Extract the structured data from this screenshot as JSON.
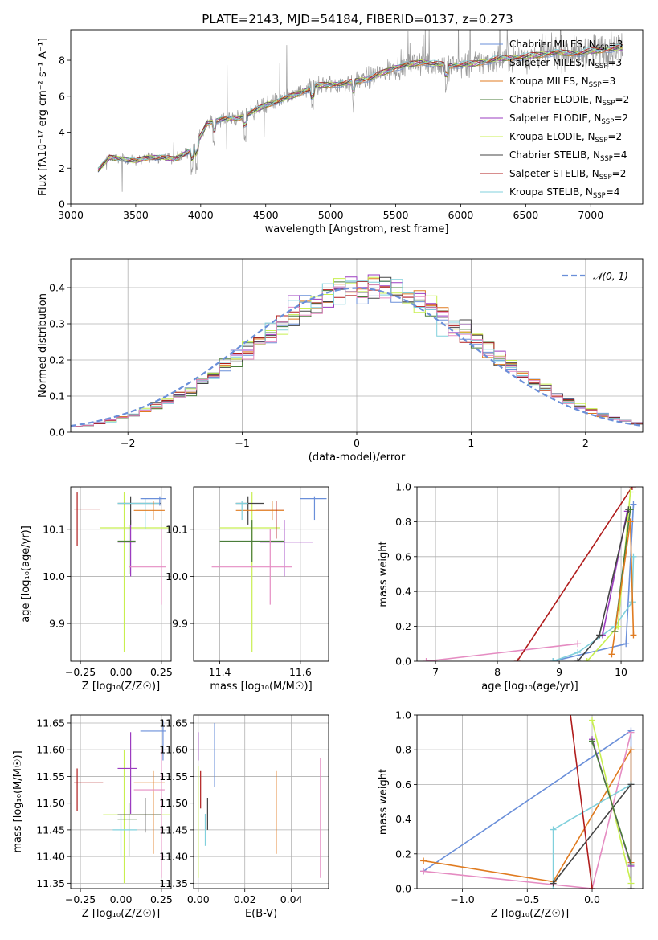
{
  "figure": {
    "title": "PLATE=2143, MJD=54184, FIBERID=0137, z=0.273"
  },
  "model_colors": {
    "chabrier_miles": "#6a8fd9",
    "salpeter_miles": "#9a9a9a",
    "kroupa_miles": "#e07b20",
    "chabrier_elodie": "#4a7d3a",
    "salpeter_elodie": "#9b3cc0",
    "kroupa_elodie": "#c8ef50",
    "chabrier_stelib": "#444444",
    "salpeter_stelib": "#b01c1c",
    "kroupa_stelib": "#80d0dc",
    "pink": "#e58cc2"
  },
  "chart_data": [
    {
      "type": "line",
      "id": "spectrum",
      "xlabel": "wavelength [Angstrom, rest frame]",
      "ylabel": "Flux [fλ10⁻¹⁷ erg cm⁻² s⁻¹ A⁻¹]",
      "xlim": [
        3000,
        7400
      ],
      "ylim": [
        0,
        9.7
      ],
      "xticks": [
        "3000",
        "3500",
        "4000",
        "4500",
        "5000",
        "5500",
        "6000",
        "6500",
        "7000"
      ],
      "yticks": [
        "0",
        "2",
        "4",
        "6",
        "8"
      ],
      "grid": false,
      "legend_position": "top-right",
      "continuum_anchors": {
        "x": [
          3210,
          3300,
          3400,
          3500,
          3600,
          3700,
          3800,
          3950,
          4050,
          4150,
          4300,
          4500,
          4700,
          4900,
          5100,
          5300,
          5500,
          5700,
          5900,
          6100,
          6300,
          6500,
          6700,
          6900,
          7100,
          7250
        ],
        "y": [
          1.9,
          2.6,
          2.5,
          2.4,
          2.6,
          2.6,
          2.5,
          3.1,
          4.5,
          4.7,
          4.8,
          5.5,
          6.0,
          6.6,
          6.7,
          7.0,
          7.6,
          7.9,
          7.7,
          7.8,
          8.1,
          8.2,
          8.4,
          8.4,
          8.6,
          8.7
        ]
      },
      "series": [
        {
          "name": "Chabrier MILES, N_SSP=3",
          "color_key": "chabrier_miles"
        },
        {
          "name": "Salpeter MILES, N_SSP=3",
          "color_key": "salpeter_miles"
        },
        {
          "name": "Kroupa MILES, N_SSP=3",
          "color_key": "kroupa_miles"
        },
        {
          "name": "Chabrier ELODIE, N_SSP=2",
          "color_key": "chabrier_elodie"
        },
        {
          "name": "Salpeter ELODIE, N_SSP=2",
          "color_key": "salpeter_elodie"
        },
        {
          "name": "Kroupa ELODIE, N_SSP=2",
          "color_key": "kroupa_elodie"
        },
        {
          "name": "Chabrier STELIB, N_SSP=4",
          "color_key": "chabrier_stelib"
        },
        {
          "name": "Salpeter STELIB, N_SSP=2",
          "color_key": "salpeter_stelib"
        },
        {
          "name": "Kroupa STELIB, N_SSP=4",
          "color_key": "kroupa_stelib"
        }
      ],
      "legend_labels": [
        {
          "pre": "Chabrier MILES, N",
          "sub": "SSP",
          "post": "=3",
          "color_key": "chabrier_miles"
        },
        {
          "pre": "Salpeter MILES, N",
          "sub": "SSP",
          "post": "=3",
          "color_key": "salpeter_miles"
        },
        {
          "pre": "Kroupa MILES, N",
          "sub": "SSP",
          "post": "=3",
          "color_key": "kroupa_miles"
        },
        {
          "pre": "Chabrier ELODIE, N",
          "sub": "SSP",
          "post": "=2",
          "color_key": "chabrier_elodie"
        },
        {
          "pre": "Salpeter ELODIE, N",
          "sub": "SSP",
          "post": "=2",
          "color_key": "salpeter_elodie"
        },
        {
          "pre": "Kroupa ELODIE, N",
          "sub": "SSP",
          "post": "=2",
          "color_key": "kroupa_elodie"
        },
        {
          "pre": "Chabrier STELIB, N",
          "sub": "SSP",
          "post": "=4",
          "color_key": "chabrier_stelib"
        },
        {
          "pre": "Salpeter STELIB, N",
          "sub": "SSP",
          "post": "=2",
          "color_key": "salpeter_stelib"
        },
        {
          "pre": "Kroupa STELIB, N",
          "sub": "SSP",
          "post": "=4",
          "color_key": "kroupa_stelib"
        }
      ]
    },
    {
      "type": "histogram",
      "id": "residuals",
      "xlabel": "(data-model)/error",
      "ylabel": "Normed distribution",
      "xlim": [
        -2.5,
        2.5
      ],
      "ylim": [
        0,
        0.48
      ],
      "xticks": [
        "−2",
        "−1",
        "0",
        "1",
        "2"
      ],
      "yticks": [
        "0.0",
        "0.1",
        "0.2",
        "0.3",
        "0.4"
      ],
      "grid": true,
      "legend_position": "top-right",
      "reference_curve": {
        "name": "𝒩(0, 1)",
        "color": "#6a8fd9",
        "style": "dashed",
        "mean": 0,
        "sigma": 1
      },
      "bin_width": 0.1
    },
    {
      "type": "errorbar",
      "id": "age_vs_Z",
      "xlabel": "Z [log₁₀(Z/Z☉)]",
      "ylabel": "age  [log₁₀(age/yr)]",
      "xlim": [
        -0.31,
        0.31
      ],
      "ylim": [
        9.82,
        10.19
      ],
      "xticks": [
        "−0.25",
        "0.00",
        "0.25"
      ],
      "yticks": [
        "9.9",
        "10.0",
        "10.1"
      ],
      "grid": true,
      "points": [
        {
          "color_key": "salpeter_stelib",
          "x": -0.27,
          "xlo": -0.29,
          "xhi": -0.13,
          "y": 10.143,
          "ylo": 10.065,
          "yhi": 10.178
        },
        {
          "color_key": "kroupa_elodie",
          "x": 0.02,
          "xlo": -0.13,
          "xhi": 0.3,
          "y": 10.103,
          "ylo": 9.84,
          "yhi": 10.178
        },
        {
          "color_key": "salpeter_elodie",
          "x": 0.06,
          "xlo": -0.02,
          "xhi": 0.09,
          "y": 10.073,
          "ylo": 10.0,
          "yhi": 10.12
        },
        {
          "color_key": "chabrier_elodie",
          "x": 0.05,
          "xlo": -0.02,
          "xhi": 0.09,
          "y": 10.075,
          "ylo": 10.005,
          "yhi": 10.11
        },
        {
          "color_key": "chabrier_stelib",
          "x": 0.06,
          "xlo": -0.02,
          "xhi": 0.25,
          "y": 10.155,
          "ylo": 10.11,
          "yhi": 10.17
        },
        {
          "color_key": "kroupa_stelib",
          "x": 0.15,
          "xlo": -0.02,
          "xhi": 0.24,
          "y": 10.155,
          "ylo": 10.1,
          "yhi": 10.165
        },
        {
          "color_key": "kroupa_miles",
          "x": 0.2,
          "xlo": 0.08,
          "xhi": 0.27,
          "y": 10.14,
          "ylo": 10.12,
          "yhi": 10.16
        },
        {
          "color_key": "chabrier_miles",
          "x": 0.24,
          "xlo": 0.12,
          "xhi": 0.28,
          "y": 10.165,
          "ylo": 10.15,
          "yhi": 10.17
        },
        {
          "color_key": "pink",
          "x": 0.25,
          "xlo": 0.05,
          "xhi": 0.28,
          "y": 10.02,
          "ylo": 9.94,
          "yhi": 10.1
        }
      ]
    },
    {
      "type": "errorbar",
      "id": "age_vs_mass",
      "xlabel": "mass [log₁₀(M/M☉)]",
      "ylabel": "",
      "xlim": [
        11.335,
        11.67
      ],
      "ylim": [
        9.82,
        10.19
      ],
      "xticks": [
        "11.4",
        "11.6"
      ],
      "yticks": [
        "9.9",
        "10.0",
        "10.1"
      ],
      "grid": true,
      "points": [
        {
          "color_key": "kroupa_elodie",
          "x": 11.48,
          "xlo": 11.4,
          "xhi": 11.55,
          "y": 10.103,
          "ylo": 9.84,
          "yhi": 10.178
        },
        {
          "color_key": "chabrier_elodie",
          "x": 11.48,
          "xlo": 11.4,
          "xhi": 11.56,
          "y": 10.075,
          "ylo": 10.03,
          "yhi": 10.12
        },
        {
          "color_key": "salpeter_elodie",
          "x": 11.56,
          "xlo": 11.5,
          "xhi": 11.63,
          "y": 10.073,
          "ylo": 10.0,
          "yhi": 10.12
        },
        {
          "color_key": "chabrier_stelib",
          "x": 11.47,
          "xlo": 11.44,
          "xhi": 11.51,
          "y": 10.155,
          "ylo": 10.11,
          "yhi": 10.17
        },
        {
          "color_key": "kroupa_miles",
          "x": 11.53,
          "xlo": 11.44,
          "xhi": 11.56,
          "y": 10.14,
          "ylo": 10.12,
          "yhi": 10.16
        },
        {
          "color_key": "salpeter_stelib",
          "x": 11.54,
          "xlo": 11.49,
          "xhi": 11.56,
          "y": 10.143,
          "ylo": 10.08,
          "yhi": 10.16
        },
        {
          "color_key": "chabrier_miles",
          "x": 11.635,
          "xlo": 11.6,
          "xhi": 11.665,
          "y": 10.165,
          "ylo": 10.12,
          "yhi": 10.17
        },
        {
          "color_key": "kroupa_stelib",
          "x": 11.455,
          "xlo": 11.44,
          "xhi": 11.47,
          "y": 10.155,
          "ylo": 10.12,
          "yhi": 10.16
        },
        {
          "color_key": "pink",
          "x": 11.525,
          "xlo": 11.38,
          "xhi": 11.58,
          "y": 10.02,
          "ylo": 9.94,
          "yhi": 10.1
        }
      ]
    },
    {
      "type": "line",
      "id": "weight_vs_age",
      "xlabel": "age  [log₁₀(age/yr)]",
      "ylabel": "mass weight",
      "xlim": [
        6.7,
        10.35
      ],
      "ylim": [
        0,
        1
      ],
      "xticks": [
        "7",
        "8",
        "9",
        "10"
      ],
      "yticks": [
        "0.0",
        "0.2",
        "0.4",
        "0.6",
        "0.8",
        "1.0"
      ],
      "grid": true,
      "series": [
        {
          "color_key": "pink",
          "x": [
            6.85,
            9.3
          ],
          "y": [
            0.0,
            0.1
          ]
        },
        {
          "color_key": "salpeter_stelib",
          "x": [
            8.32,
            10.18
          ],
          "y": [
            0.0,
            1.0
          ]
        },
        {
          "color_key": "chabrier_miles",
          "x": [
            8.9,
            10.08,
            10.2
          ],
          "y": [
            0.0,
            0.1,
            0.9
          ]
        },
        {
          "color_key": "kroupa_stelib",
          "x": [
            8.9,
            9.3,
            9.9,
            10.18,
            10.2
          ],
          "y": [
            0.0,
            0.05,
            0.2,
            0.34,
            0.6
          ]
        },
        {
          "color_key": "kroupa_elodie",
          "x": [
            9.45,
            9.95,
            10.15
          ],
          "y": [
            0.0,
            0.2,
            0.97
          ]
        },
        {
          "color_key": "salpeter_elodie",
          "x": [
            9.7,
            10.1
          ],
          "y": [
            0.15,
            0.86
          ]
        },
        {
          "color_key": "chabrier_stelib",
          "x": [
            9.3,
            9.65,
            10.12
          ],
          "y": [
            0.0,
            0.15,
            0.87
          ]
        },
        {
          "color_key": "chabrier_elodie",
          "x": [
            9.9,
            10.15
          ],
          "y": [
            0.17,
            0.87
          ]
        },
        {
          "color_key": "kroupa_miles",
          "x": [
            9.85,
            10.15,
            10.2
          ],
          "y": [
            0.04,
            0.8,
            0.15
          ]
        }
      ]
    },
    {
      "type": "errorbar",
      "id": "mass_vs_Z",
      "xlabel": "Z [log₁₀(Z/Z☉)]",
      "ylabel": "mass [log₁₀(M/M☉)]",
      "xlim": [
        -0.31,
        0.31
      ],
      "ylim": [
        11.34,
        11.665
      ],
      "xticks": [
        "−0.25",
        "0.00",
        "0.25"
      ],
      "yticks": [
        "11.35",
        "11.40",
        "11.45",
        "11.50",
        "11.55",
        "11.60",
        "11.65"
      ],
      "grid": true,
      "points": [
        {
          "color_key": "salpeter_stelib",
          "x": -0.27,
          "xlo": -0.29,
          "xhi": -0.11,
          "y": 11.538,
          "ylo": 11.485,
          "yhi": 11.565
        },
        {
          "color_key": "kroupa_elodie",
          "x": 0.02,
          "xlo": -0.11,
          "xhi": 0.3,
          "y": 11.478,
          "ylo": 11.35,
          "yhi": 11.6
        },
        {
          "color_key": "salpeter_elodie",
          "x": 0.06,
          "xlo": -0.02,
          "xhi": 0.1,
          "y": 11.565,
          "ylo": 11.48,
          "yhi": 11.633
        },
        {
          "color_key": "chabrier_elodie",
          "x": 0.05,
          "xlo": -0.02,
          "xhi": 0.1,
          "y": 11.47,
          "ylo": 11.4,
          "yhi": 11.5
        },
        {
          "color_key": "kroupa_stelib",
          "x": 0.0,
          "xlo": -0.05,
          "xhi": 0.1,
          "y": 11.45,
          "ylo": 11.4,
          "yhi": 11.48
        },
        {
          "color_key": "chabrier_stelib",
          "x": 0.15,
          "xlo": -0.02,
          "xhi": 0.25,
          "y": 11.478,
          "ylo": 11.445,
          "yhi": 11.51
        },
        {
          "color_key": "kroupa_miles",
          "x": 0.2,
          "xlo": 0.08,
          "xhi": 0.27,
          "y": 11.538,
          "ylo": 11.405,
          "yhi": 11.56
        },
        {
          "color_key": "chabrier_miles",
          "x": 0.26,
          "xlo": 0.12,
          "xhi": 0.28,
          "y": 11.635,
          "ylo": 11.58,
          "yhi": 11.655
        },
        {
          "color_key": "pink",
          "x": 0.25,
          "xlo": 0.08,
          "xhi": 0.27,
          "y": 11.525,
          "ylo": 11.36,
          "yhi": 11.6
        }
      ]
    },
    {
      "type": "errorbar",
      "id": "mass_vs_ebv",
      "xlabel": "E(B-V)",
      "ylabel": "",
      "xlim": [
        -0.002,
        0.056
      ],
      "ylim": [
        11.34,
        11.665
      ],
      "xticks": [
        "0.00",
        "0.02",
        "0.04"
      ],
      "yticks": [
        "11.35",
        "11.40",
        "11.45",
        "11.50",
        "11.55",
        "11.60",
        "11.65"
      ],
      "grid": true,
      "points": [
        {
          "color_key": "kroupa_elodie",
          "x": 0.0,
          "ylo": 11.36,
          "yhi": 11.57
        },
        {
          "color_key": "salpeter_elodie",
          "x": 0.0,
          "ylo": 11.58,
          "yhi": 11.633
        },
        {
          "color_key": "salpeter_stelib",
          "x": 0.001,
          "ylo": 11.49,
          "yhi": 11.56
        },
        {
          "color_key": "chabrier_stelib",
          "x": 0.004,
          "ylo": 11.45,
          "yhi": 11.51
        },
        {
          "color_key": "kroupa_stelib",
          "x": 0.003,
          "ylo": 11.42,
          "yhi": 11.48
        },
        {
          "color_key": "chabrier_miles",
          "x": 0.007,
          "ylo": 11.53,
          "yhi": 11.65
        },
        {
          "color_key": "kroupa_miles",
          "x": 0.0335,
          "ylo": 11.405,
          "yhi": 11.56
        },
        {
          "color_key": "pink",
          "x": 0.0525,
          "ylo": 11.36,
          "yhi": 11.585
        }
      ]
    },
    {
      "type": "line",
      "id": "weight_vs_Z",
      "xlabel": "Z [log₁₀(Z/Z☉)]",
      "ylabel": "mass weight",
      "xlim": [
        -1.35,
        0.39
      ],
      "ylim": [
        0,
        1
      ],
      "xticks": [
        "−1.0",
        "−0.5",
        "0.0"
      ],
      "yticks": [
        "0.0",
        "0.2",
        "0.4",
        "0.6",
        "0.8",
        "1.0"
      ],
      "grid": true,
      "series": [
        {
          "color_key": "chabrier_miles",
          "x": [
            -1.3,
            0.3,
            0.3
          ],
          "y": [
            0.1,
            0.91,
            0.14
          ]
        },
        {
          "color_key": "kroupa_miles",
          "x": [
            -1.3,
            -0.3,
            0.3,
            0.3
          ],
          "y": [
            0.16,
            0.04,
            0.8,
            0.15
          ]
        },
        {
          "color_key": "pink",
          "x": [
            -1.3,
            0.0,
            0.3
          ],
          "y": [
            0.1,
            0.0,
            0.9
          ]
        },
        {
          "color_key": "kroupa_stelib",
          "x": [
            -0.3,
            -0.3,
            0.3
          ],
          "y": [
            0.0,
            0.34,
            0.6
          ]
        },
        {
          "color_key": "chabrier_stelib",
          "x": [
            -0.3,
            0.3,
            0.3
          ],
          "y": [
            0.03,
            0.6,
            0.0
          ]
        },
        {
          "color_key": "salpeter_stelib",
          "x": [
            -0.3,
            0.0
          ],
          "y": [
            1.8,
            0.0
          ]
        },
        {
          "color_key": "kroupa_elodie",
          "x": [
            0.0,
            0.3
          ],
          "y": [
            0.97,
            0.03
          ]
        },
        {
          "color_key": "salpeter_elodie",
          "x": [
            0.0,
            0.3
          ],
          "y": [
            0.86,
            0.13
          ]
        },
        {
          "color_key": "chabrier_elodie",
          "x": [
            0.0,
            0.3
          ],
          "y": [
            0.85,
            0.14
          ]
        }
      ]
    }
  ]
}
